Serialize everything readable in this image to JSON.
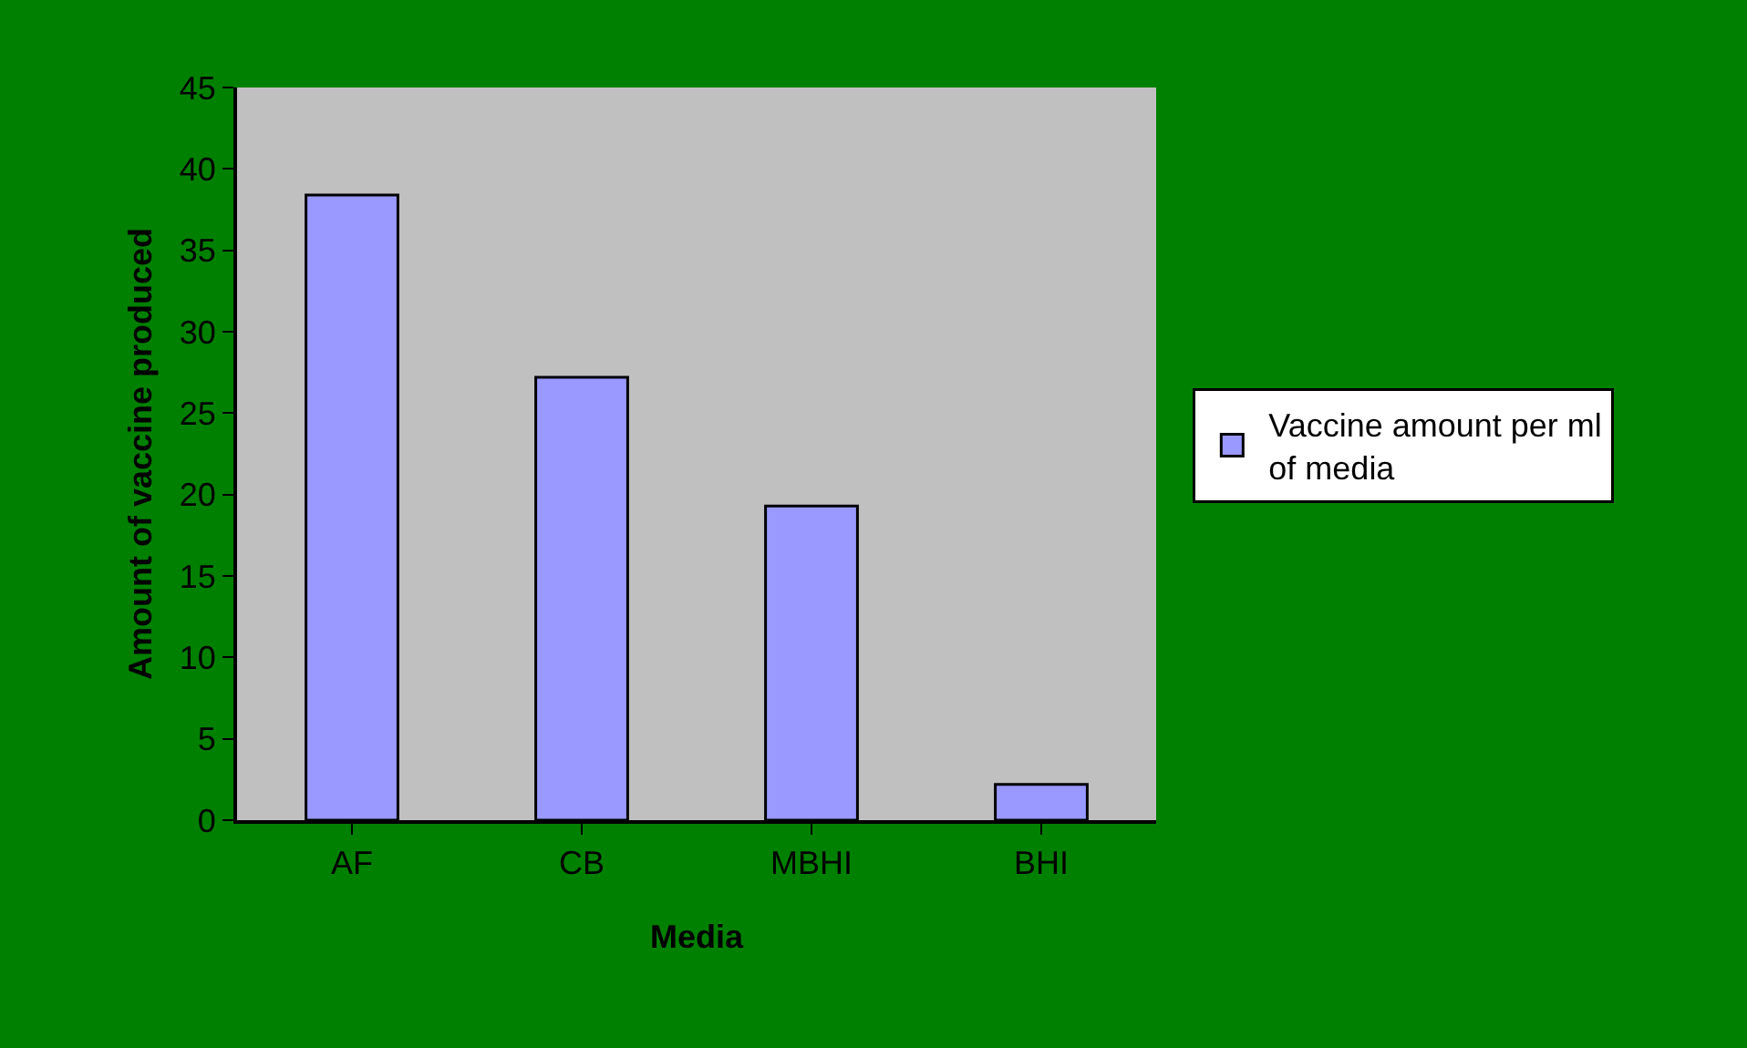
{
  "chart_data": {
    "type": "bar",
    "xlabel": "Media",
    "ylabel": "Amount of vaccine produced",
    "categories": [
      "AF",
      "CB",
      "MBHI",
      "BHI"
    ],
    "series": [
      {
        "name": "Vaccine amount per ml of media",
        "color": "#9999ff",
        "values": [
          38.4,
          27.2,
          19.3,
          2.2
        ]
      }
    ],
    "ylim": [
      0,
      45
    ],
    "yticks": [
      0,
      5,
      10,
      15,
      20,
      25,
      30,
      35,
      40,
      45
    ],
    "grid": false,
    "legend": "right"
  }
}
